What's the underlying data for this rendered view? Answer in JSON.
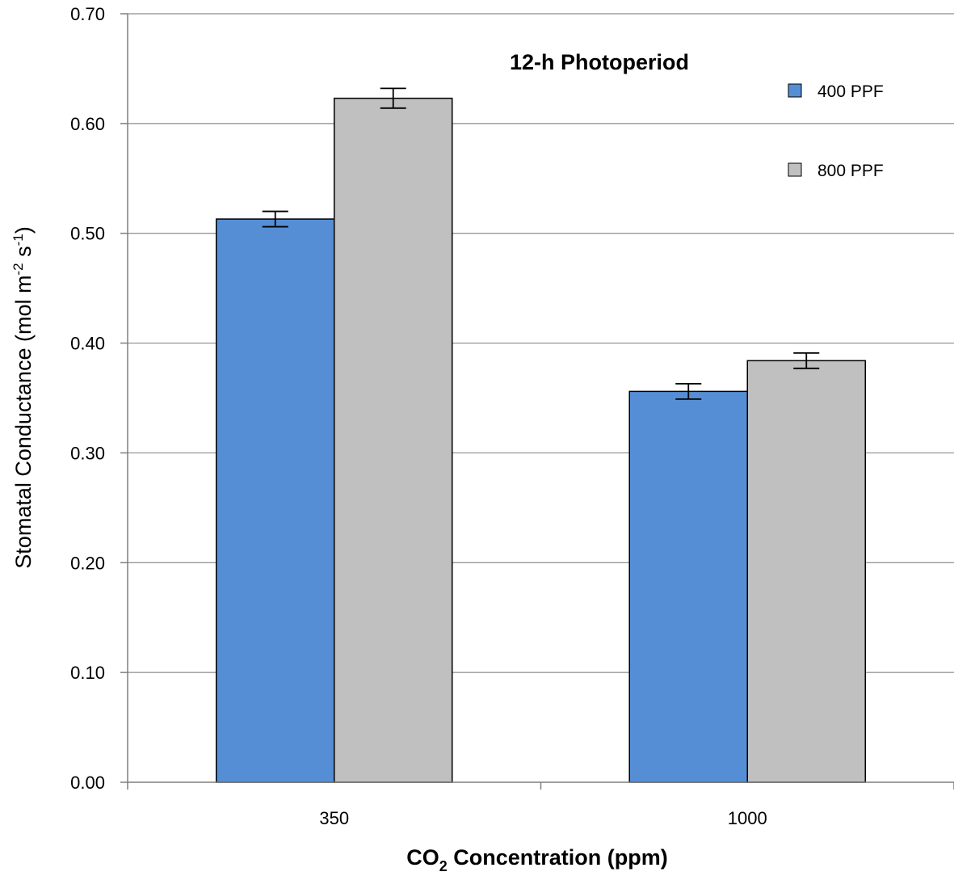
{
  "chart_data": {
    "type": "bar",
    "title": "12-h Photoperiod",
    "xlabel": {
      "pre": "CO",
      "sub": "2",
      "post": " Concentration (ppm)"
    },
    "ylabel": {
      "a": "Stomatal Conductance (mol m",
      "sup1": "-2",
      "b": " s",
      "sup2": "-1",
      "c": ")"
    },
    "categories": [
      "350",
      "1000"
    ],
    "ylim": [
      0,
      0.7
    ],
    "yticks": [
      "0.00",
      "0.10",
      "0.20",
      "0.30",
      "0.40",
      "0.50",
      "0.60",
      "0.70"
    ],
    "grid": true,
    "legend_position": "top-right",
    "series": [
      {
        "name": "400 PPF",
        "color": "#558ed5",
        "values": [
          0.513,
          0.356
        ],
        "errors": [
          0.007,
          0.007
        ]
      },
      {
        "name": "800 PPF",
        "color": "#c0c0c0",
        "values": [
          0.623,
          0.384
        ],
        "errors": [
          0.009,
          0.007
        ]
      }
    ]
  }
}
